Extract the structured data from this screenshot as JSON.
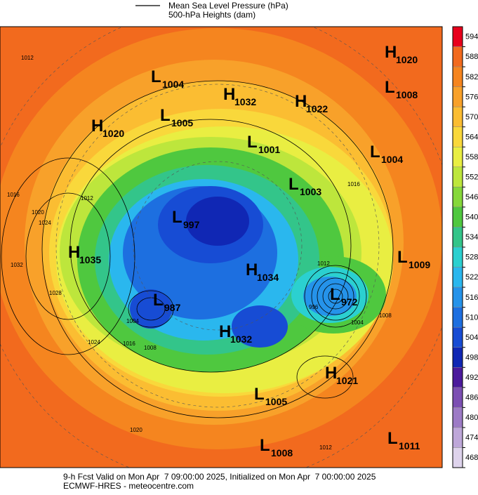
{
  "legend": {
    "line_label": "Mean Sea Level Pressure (hPa)",
    "fill_label": "500-hPa Heights (dam)"
  },
  "centers": [
    {
      "type": "H",
      "value": 1020
    },
    {
      "type": "L",
      "value": 1004
    },
    {
      "type": "H",
      "value": 1032
    },
    {
      "type": "H",
      "value": 1022
    },
    {
      "type": "L",
      "value": 1008
    },
    {
      "type": "L",
      "value": 1005
    },
    {
      "type": "H",
      "value": 1020
    },
    {
      "type": "L",
      "value": 1001
    },
    {
      "type": "L",
      "value": 1004
    },
    {
      "type": "L",
      "value": 1003
    },
    {
      "type": "L",
      "value": 997
    },
    {
      "type": "H",
      "value": 1035
    },
    {
      "type": "L",
      "value": 1009
    },
    {
      "type": "H",
      "value": 1034
    },
    {
      "type": "L",
      "value": 972
    },
    {
      "type": "L",
      "value": 987
    },
    {
      "type": "H",
      "value": 1032
    },
    {
      "type": "H",
      "value": 1021
    },
    {
      "type": "L",
      "value": 1005
    },
    {
      "type": "L",
      "value": 1008
    },
    {
      "type": "L",
      "value": 1011
    }
  ],
  "contour_labels": [
    1012,
    1016,
    1012,
    1020,
    1024,
    1032,
    1028,
    1024,
    1016,
    1008,
    1004,
    1016,
    1012,
    1004,
    1008,
    996,
    1012,
    1020
  ],
  "colorbar": {
    "ticks": [
      594,
      588,
      582,
      576,
      570,
      564,
      558,
      552,
      546,
      540,
      534,
      528,
      522,
      516,
      510,
      504,
      498,
      492,
      486,
      480,
      474,
      468
    ],
    "colors": [
      "#e8001c",
      "#f26a1e",
      "#f5851f",
      "#f8a12a",
      "#fbbd32",
      "#f9d83b",
      "#e9ee42",
      "#bde63c",
      "#86d83a",
      "#4fc83f",
      "#33c58a",
      "#2bd0d0",
      "#2ab7ee",
      "#2593ea",
      "#1d6fe0",
      "#174cd4",
      "#1027b4",
      "#4b1a9c",
      "#7c4fb3",
      "#9d7bc6",
      "#bea7d9",
      "#ded3ec"
    ]
  },
  "footer": {
    "line1": "9-h Fcst Valid on Mon Apr  7 09:00:00 2025, Initialized on Mon Apr  7 00:00:00 2025",
    "line2": "ECMWF-HRES - meteocentre.com"
  }
}
